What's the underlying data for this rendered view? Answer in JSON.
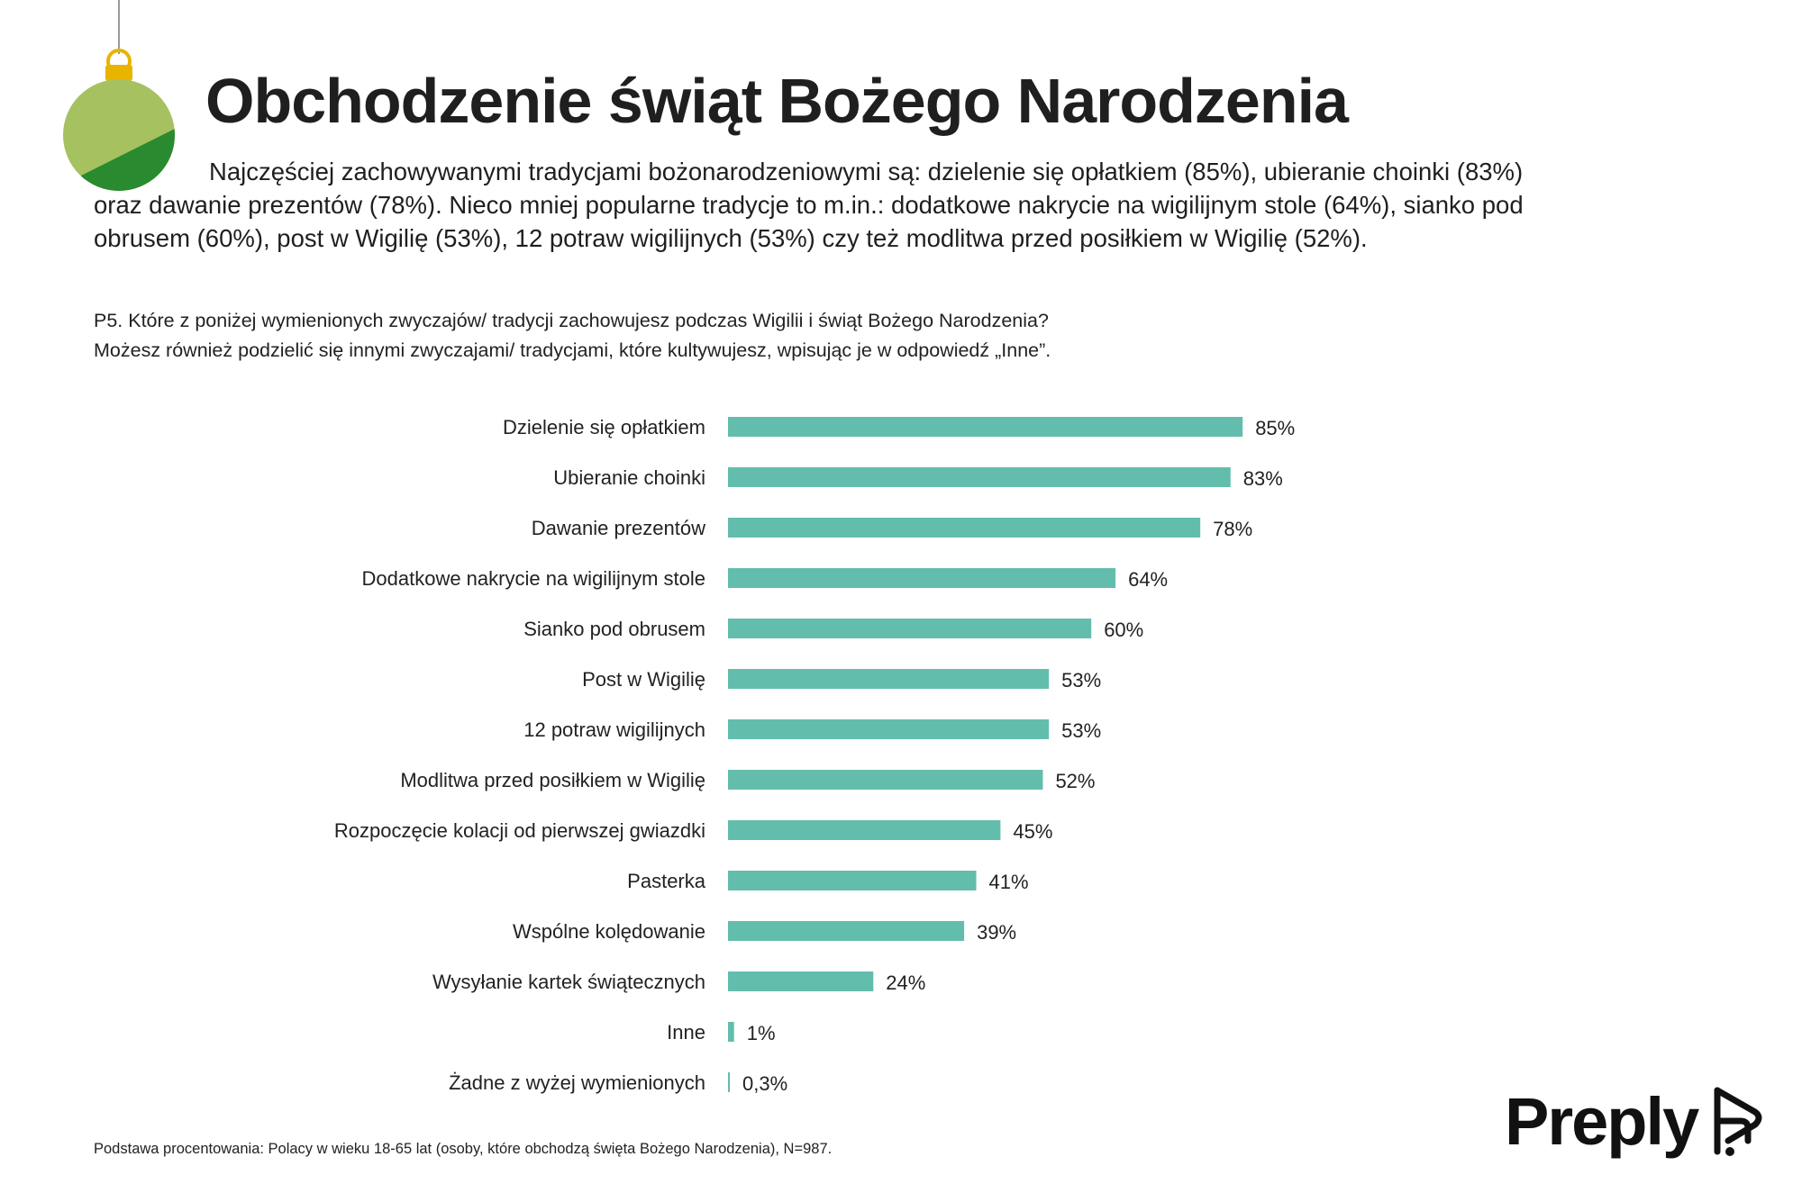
{
  "header": {
    "title": "Obchodzenie świąt Bożego Narodzenia",
    "intro": "Najczęściej zachowywanymi tradycjami bożonarodzeniowymi są: dzielenie się opłatkiem (85%), ubieranie choinki (83%) oraz dawanie prezentów (78%). Nieco mniej popularne tradycje to m.in.: dodatkowe nakrycie na wigilijnym stole (64%), sianko pod obrusem (60%), post w Wigilię (53%), 12 potraw wigilijnych (53%) czy też modlitwa przed posiłkiem w Wigilię (52%).",
    "question_line1": "P5. Które z poniżej wymienionych zwyczajów/ tradycji zachowujesz podczas Wigilii i świąt Bożego Narodzenia?",
    "question_line2": "Możesz również podzielić się innymi zwyczajami/ tradycjami, które kultywujesz, wpisując je w odpowiedź „Inne”."
  },
  "footnote": "Podstawa procentowania: Polacy w wieku 18-65 lat (osoby, które obchodzą święta Bożego Narodzenia), N=987.",
  "brand": {
    "name": "Preply",
    "logo_icon": "preply-mark-icon"
  },
  "decoration": {
    "icon": "christmas-ornament-icon",
    "color_light": "#a6c15f",
    "color_dark": "#2a8a2f",
    "cap_color": "#e8b400"
  },
  "colors": {
    "bar": "#63bdac",
    "text": "#1f1f1f"
  },
  "chart_data": {
    "type": "bar",
    "orientation": "horizontal",
    "title": "",
    "xlabel": "",
    "ylabel": "",
    "xlim": [
      0,
      100
    ],
    "grid": false,
    "categories": [
      "Dzielenie się opłatkiem",
      "Ubieranie choinki",
      "Dawanie prezentów",
      "Dodatkowe nakrycie na wigilijnym stole",
      "Sianko pod obrusem",
      "Post w Wigilię",
      "12 potraw wigilijnych",
      "Modlitwa przed posiłkiem w Wigilię",
      "Rozpoczęcie kolacji od pierwszej gwiazdki",
      "Pasterka",
      "Wspólne kolędowanie",
      "Wysyłanie kartek świątecznych",
      "Inne",
      "Żadne z wyżej wymienionych"
    ],
    "values": [
      85,
      83,
      78,
      64,
      60,
      53,
      53,
      52,
      45,
      41,
      39,
      24,
      1,
      0.3
    ],
    "value_labels": [
      "85%",
      "83%",
      "78%",
      "64%",
      "60%",
      "53%",
      "53%",
      "52%",
      "45%",
      "41%",
      "39%",
      "24%",
      "1%",
      "0,3%"
    ]
  }
}
